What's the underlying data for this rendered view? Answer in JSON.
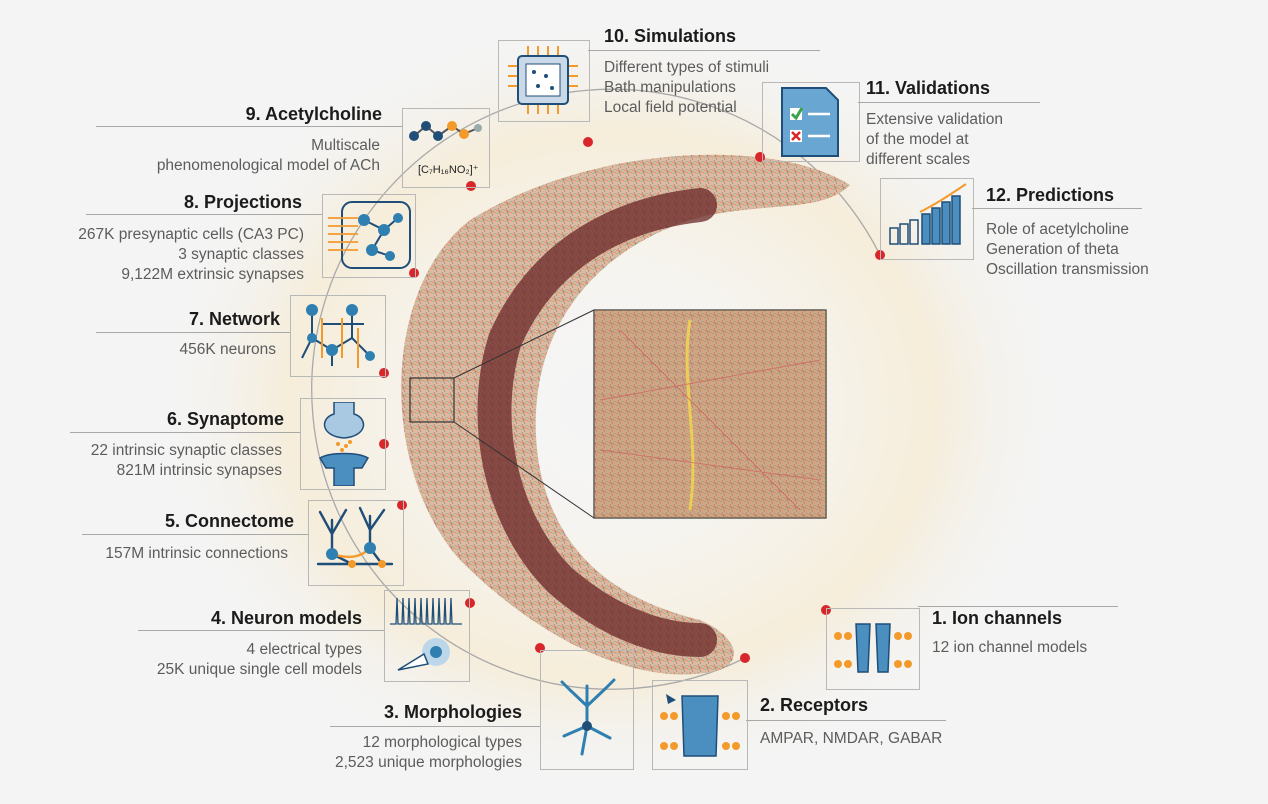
{
  "steps": [
    {
      "title": "1. Ion channels",
      "lines": [
        "12 ion channel models"
      ]
    },
    {
      "title": "2. Receptors",
      "lines": [
        "AMPAR, NMDAR, GABAR"
      ]
    },
    {
      "title": "3. Morphologies",
      "lines": [
        "12 morphological types",
        "2,523 unique morphologies"
      ]
    },
    {
      "title": "4. Neuron models",
      "lines": [
        "4 electrical types",
        "25K unique single cell models"
      ]
    },
    {
      "title": "5. Connectome",
      "lines": [
        "157M intrinsic connections"
      ]
    },
    {
      "title": "6. Synaptome",
      "lines": [
        "22 intrinsic synaptic classes",
        "821M intrinsic synapses"
      ]
    },
    {
      "title": "7. Network",
      "lines": [
        "456K neurons"
      ]
    },
    {
      "title": "8. Projections",
      "lines": [
        "267K presynaptic cells (CA3 PC)",
        "3 synaptic classes",
        "9,122M extrinsic synapses"
      ]
    },
    {
      "title": "9. Acetylcholine",
      "lines": [
        "Multiscale",
        "phenomenological model of ACh"
      ]
    },
    {
      "title": "10. Simulations",
      "lines": [
        "Different types of stimuli",
        "Bath manipulations",
        "Local field potential"
      ]
    },
    {
      "title": "11. Validations",
      "lines": [
        "Extensive validation",
        "of the model at",
        "different scales"
      ]
    },
    {
      "title": "12. Predictions",
      "lines": [
        "Role of acetylcholine",
        "Generation of theta",
        "Oscillation transmission"
      ]
    }
  ],
  "formula": "[C₇H₁₆NO₂]⁺",
  "colors": {
    "accent_red": "#d8262b",
    "icon_blue": "#2f7fb0",
    "icon_dark": "#1f4e79",
    "orange": "#f39a2b",
    "tissue_dark": "#6a2626",
    "halo": "#f7e7c4"
  },
  "icons": [
    "ion-channel-icon",
    "receptor-icon",
    "neuron-morphology-icon",
    "spike-train-icon",
    "connectome-icon",
    "synapse-icon",
    "network-icon",
    "projection-icon",
    "molecule-icon",
    "chip-icon",
    "checklist-icon",
    "bar-chart-icon"
  ]
}
